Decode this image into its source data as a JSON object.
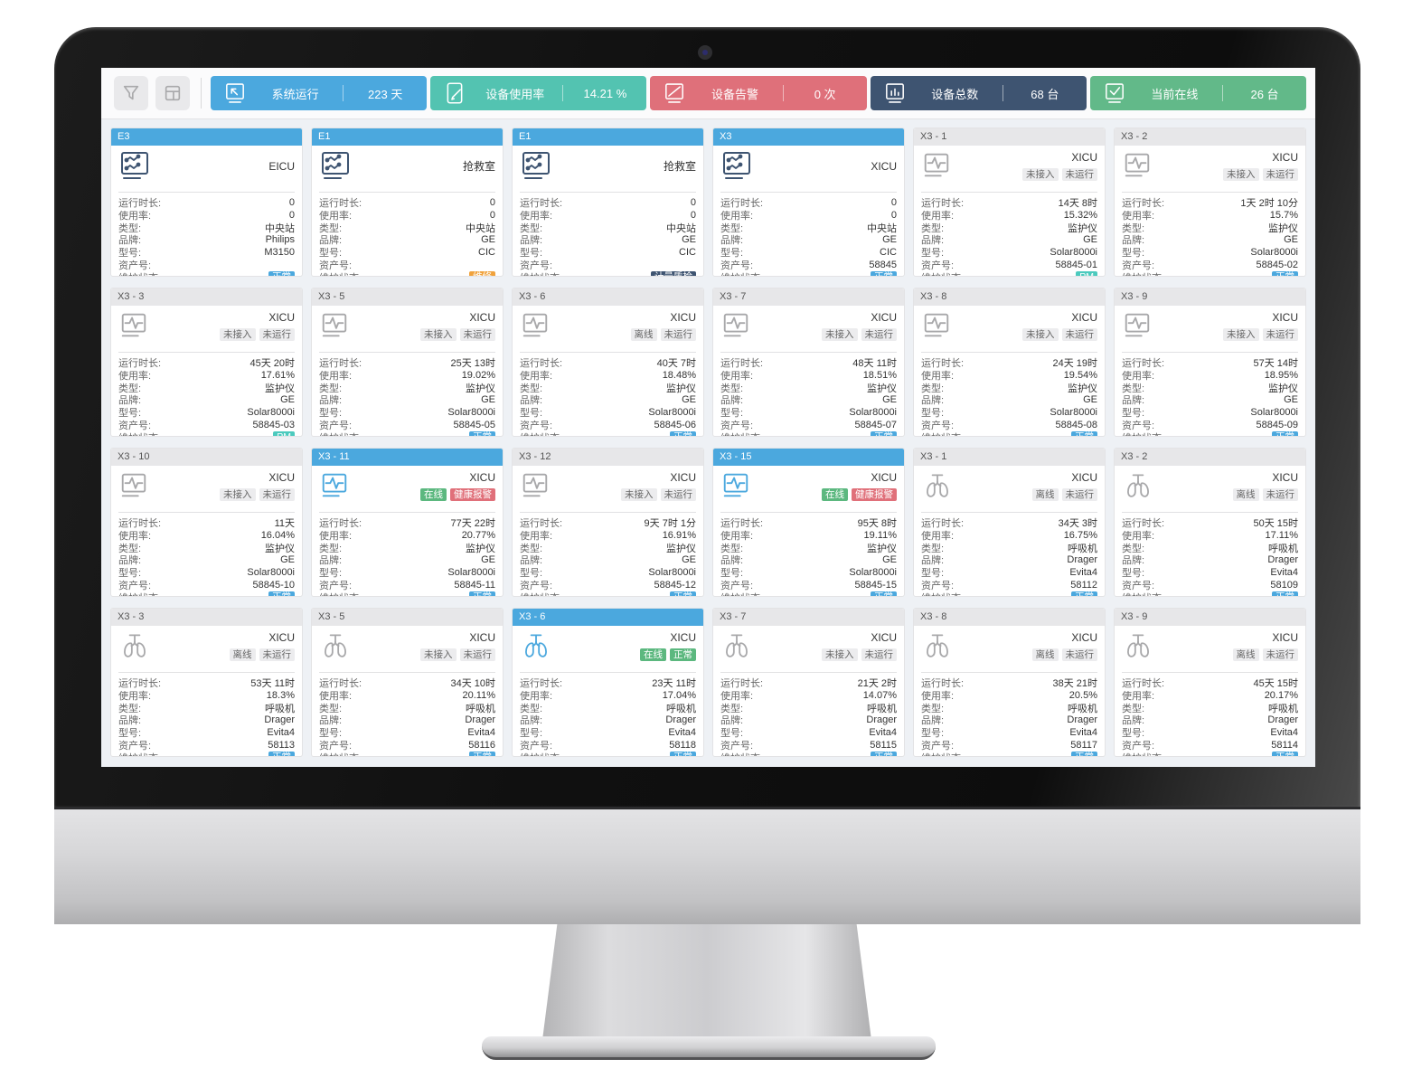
{
  "toolbar": {
    "buttons": [
      {
        "name": "filter",
        "icon": "filter-icon"
      },
      {
        "name": "layout",
        "icon": "layout-icon"
      }
    ],
    "stats": [
      {
        "label": "系统运行",
        "value": "223 天",
        "color": "#4ba8de",
        "icon": "monitor-cursor-icon"
      },
      {
        "label": "设备使用率",
        "value": "14.21 %",
        "color": "#53c3b1",
        "icon": "tablet-pencil-icon"
      },
      {
        "label": "设备告警",
        "value": "0 次",
        "color": "#df707a",
        "icon": "monitor-slash-icon"
      },
      {
        "label": "设备总数",
        "value": "68 台",
        "color": "#3e5471",
        "icon": "monitor-bars-icon"
      },
      {
        "label": "当前在线",
        "value": "26 台",
        "color": "#62b989",
        "icon": "monitor-check-icon"
      }
    ]
  },
  "field_labels": {
    "runtime": "运行时长:",
    "usage": "使用率:",
    "type": "类型:",
    "brand": "品牌:",
    "model": "型号:",
    "asset": "资产号:",
    "status": "维护状态:"
  },
  "badge_colors": {
    "正常": "#4ba8de",
    "PM": "#4ccabe",
    "维修": "#f0a23c",
    "计量质检": "#3e5471"
  },
  "chip_styles": {
    "未接入": "gray",
    "未运行": "gray",
    "离线": "gray",
    "在线": "green",
    "健康报警": "red",
    "正常": "green"
  },
  "cards": [
    {
      "id": "E3",
      "active": true,
      "device": "central",
      "online": false,
      "title": "EICU",
      "chips": [],
      "fields": {
        "runtime": "0",
        "usage": "0",
        "type": "中央站",
        "brand": "Philips",
        "model": "M3150",
        "asset": "",
        "status": "正常"
      }
    },
    {
      "id": "E1",
      "active": true,
      "device": "central",
      "online": false,
      "title": "抢救室",
      "chips": [],
      "fields": {
        "runtime": "0",
        "usage": "0",
        "type": "中央站",
        "brand": "GE",
        "model": "CIC",
        "asset": "",
        "status": "维修"
      }
    },
    {
      "id": "E1",
      "active": true,
      "device": "central",
      "online": false,
      "title": "抢救室",
      "chips": [],
      "fields": {
        "runtime": "0",
        "usage": "0",
        "type": "中央站",
        "brand": "GE",
        "model": "CIC",
        "asset": "",
        "status": "计量质检"
      }
    },
    {
      "id": "X3",
      "active": true,
      "device": "central",
      "online": false,
      "title": "XICU",
      "chips": [],
      "fields": {
        "runtime": "0",
        "usage": "0",
        "type": "中央站",
        "brand": "GE",
        "model": "CIC",
        "asset": "58845",
        "status": "正常"
      }
    },
    {
      "id": "X3 - 1",
      "active": false,
      "device": "monitor",
      "online": false,
      "title": "XICU",
      "chips": [
        "未接入",
        "未运行"
      ],
      "fields": {
        "runtime": "14天 8时",
        "usage": "15.32%",
        "type": "监护仪",
        "brand": "GE",
        "model": "Solar8000i",
        "asset": "58845-01",
        "status": "PM"
      }
    },
    {
      "id": "X3 - 2",
      "active": false,
      "device": "monitor",
      "online": false,
      "title": "XICU",
      "chips": [
        "未接入",
        "未运行"
      ],
      "fields": {
        "runtime": "1天 2时 10分",
        "usage": "15.7%",
        "type": "监护仪",
        "brand": "GE",
        "model": "Solar8000i",
        "asset": "58845-02",
        "status": "正常"
      }
    },
    {
      "id": "X3 - 3",
      "active": false,
      "device": "monitor",
      "online": false,
      "title": "XICU",
      "chips": [
        "未接入",
        "未运行"
      ],
      "fields": {
        "runtime": "45天 20时",
        "usage": "17.61%",
        "type": "监护仪",
        "brand": "GE",
        "model": "Solar8000i",
        "asset": "58845-03",
        "status": "PM"
      }
    },
    {
      "id": "X3 - 5",
      "active": false,
      "device": "monitor",
      "online": false,
      "title": "XICU",
      "chips": [
        "未接入",
        "未运行"
      ],
      "fields": {
        "runtime": "25天 13时",
        "usage": "19.02%",
        "type": "监护仪",
        "brand": "GE",
        "model": "Solar8000i",
        "asset": "58845-05",
        "status": "正常"
      }
    },
    {
      "id": "X3 - 6",
      "active": false,
      "device": "monitor",
      "online": false,
      "title": "XICU",
      "chips": [
        "离线",
        "未运行"
      ],
      "fields": {
        "runtime": "40天 7时",
        "usage": "18.48%",
        "type": "监护仪",
        "brand": "GE",
        "model": "Solar8000i",
        "asset": "58845-06",
        "status": "正常"
      }
    },
    {
      "id": "X3 - 7",
      "active": false,
      "device": "monitor",
      "online": false,
      "title": "XICU",
      "chips": [
        "未接入",
        "未运行"
      ],
      "fields": {
        "runtime": "48天 11时",
        "usage": "18.51%",
        "type": "监护仪",
        "brand": "GE",
        "model": "Solar8000i",
        "asset": "58845-07",
        "status": "正常"
      }
    },
    {
      "id": "X3 - 8",
      "active": false,
      "device": "monitor",
      "online": false,
      "title": "XICU",
      "chips": [
        "未接入",
        "未运行"
      ],
      "fields": {
        "runtime": "24天 19时",
        "usage": "19.54%",
        "type": "监护仪",
        "brand": "GE",
        "model": "Solar8000i",
        "asset": "58845-08",
        "status": "正常"
      }
    },
    {
      "id": "X3 - 9",
      "active": false,
      "device": "monitor",
      "online": false,
      "title": "XICU",
      "chips": [
        "未接入",
        "未运行"
      ],
      "fields": {
        "runtime": "57天 14时",
        "usage": "18.95%",
        "type": "监护仪",
        "brand": "GE",
        "model": "Solar8000i",
        "asset": "58845-09",
        "status": "正常"
      }
    },
    {
      "id": "X3 - 10",
      "active": false,
      "device": "monitor",
      "online": false,
      "title": "XICU",
      "chips": [
        "未接入",
        "未运行"
      ],
      "fields": {
        "runtime": "11天",
        "usage": "16.04%",
        "type": "监护仪",
        "brand": "GE",
        "model": "Solar8000i",
        "asset": "58845-10",
        "status": "正常"
      }
    },
    {
      "id": "X3 - 11",
      "active": true,
      "device": "monitor",
      "online": true,
      "title": "XICU",
      "chips": [
        "在线",
        "健康报警"
      ],
      "fields": {
        "runtime": "77天 22时",
        "usage": "20.77%",
        "type": "监护仪",
        "brand": "GE",
        "model": "Solar8000i",
        "asset": "58845-11",
        "status": "正常"
      }
    },
    {
      "id": "X3 - 12",
      "active": false,
      "device": "monitor",
      "online": false,
      "title": "XICU",
      "chips": [
        "未接入",
        "未运行"
      ],
      "fields": {
        "runtime": "9天 7时 1分",
        "usage": "16.91%",
        "type": "监护仪",
        "brand": "GE",
        "model": "Solar8000i",
        "asset": "58845-12",
        "status": "正常"
      }
    },
    {
      "id": "X3 - 15",
      "active": true,
      "device": "monitor",
      "online": true,
      "title": "XICU",
      "chips": [
        "在线",
        "健康报警"
      ],
      "fields": {
        "runtime": "95天 8时",
        "usage": "19.11%",
        "type": "监护仪",
        "brand": "GE",
        "model": "Solar8000i",
        "asset": "58845-15",
        "status": "正常"
      }
    },
    {
      "id": "X3 - 1",
      "active": false,
      "device": "vent",
      "online": false,
      "title": "XICU",
      "chips": [
        "离线",
        "未运行"
      ],
      "fields": {
        "runtime": "34天 3时",
        "usage": "16.75%",
        "type": "呼吸机",
        "brand": "Drager",
        "model": "Evita4",
        "asset": "58112",
        "status": "正常"
      }
    },
    {
      "id": "X3 - 2",
      "active": false,
      "device": "vent",
      "online": false,
      "title": "XICU",
      "chips": [
        "离线",
        "未运行"
      ],
      "fields": {
        "runtime": "50天 15时",
        "usage": "17.11%",
        "type": "呼吸机",
        "brand": "Drager",
        "model": "Evita4",
        "asset": "58109",
        "status": "正常"
      }
    },
    {
      "id": "X3 - 3",
      "active": false,
      "device": "vent",
      "online": false,
      "title": "XICU",
      "chips": [
        "离线",
        "未运行"
      ],
      "fields": {
        "runtime": "53天 11时",
        "usage": "18.3%",
        "type": "呼吸机",
        "brand": "Drager",
        "model": "Evita4",
        "asset": "58113",
        "status": "正常"
      }
    },
    {
      "id": "X3 - 5",
      "active": false,
      "device": "vent",
      "online": false,
      "title": "XICU",
      "chips": [
        "未接入",
        "未运行"
      ],
      "fields": {
        "runtime": "34天 10时",
        "usage": "20.11%",
        "type": "呼吸机",
        "brand": "Drager",
        "model": "Evita4",
        "asset": "58116",
        "status": "正常"
      }
    },
    {
      "id": "X3 - 6",
      "active": true,
      "device": "vent",
      "online": true,
      "title": "XICU",
      "chips": [
        "在线",
        "正常"
      ],
      "fields": {
        "runtime": "23天 11时",
        "usage": "17.04%",
        "type": "呼吸机",
        "brand": "Drager",
        "model": "Evita4",
        "asset": "58118",
        "status": "正常"
      }
    },
    {
      "id": "X3 - 7",
      "active": false,
      "device": "vent",
      "online": false,
      "title": "XICU",
      "chips": [
        "未接入",
        "未运行"
      ],
      "fields": {
        "runtime": "21天 2时",
        "usage": "14.07%",
        "type": "呼吸机",
        "brand": "Drager",
        "model": "Evita4",
        "asset": "58115",
        "status": "正常"
      }
    },
    {
      "id": "X3 - 8",
      "active": false,
      "device": "vent",
      "online": false,
      "title": "XICU",
      "chips": [
        "离线",
        "未运行"
      ],
      "fields": {
        "runtime": "38天 21时",
        "usage": "20.5%",
        "type": "呼吸机",
        "brand": "Drager",
        "model": "Evita4",
        "asset": "58117",
        "status": "正常"
      }
    },
    {
      "id": "X3 - 9",
      "active": false,
      "device": "vent",
      "online": false,
      "title": "XICU",
      "chips": [
        "离线",
        "未运行"
      ],
      "fields": {
        "runtime": "45天 15时",
        "usage": "20.17%",
        "type": "呼吸机",
        "brand": "Drager",
        "model": "Evita4",
        "asset": "58114",
        "status": "正常"
      }
    }
  ]
}
